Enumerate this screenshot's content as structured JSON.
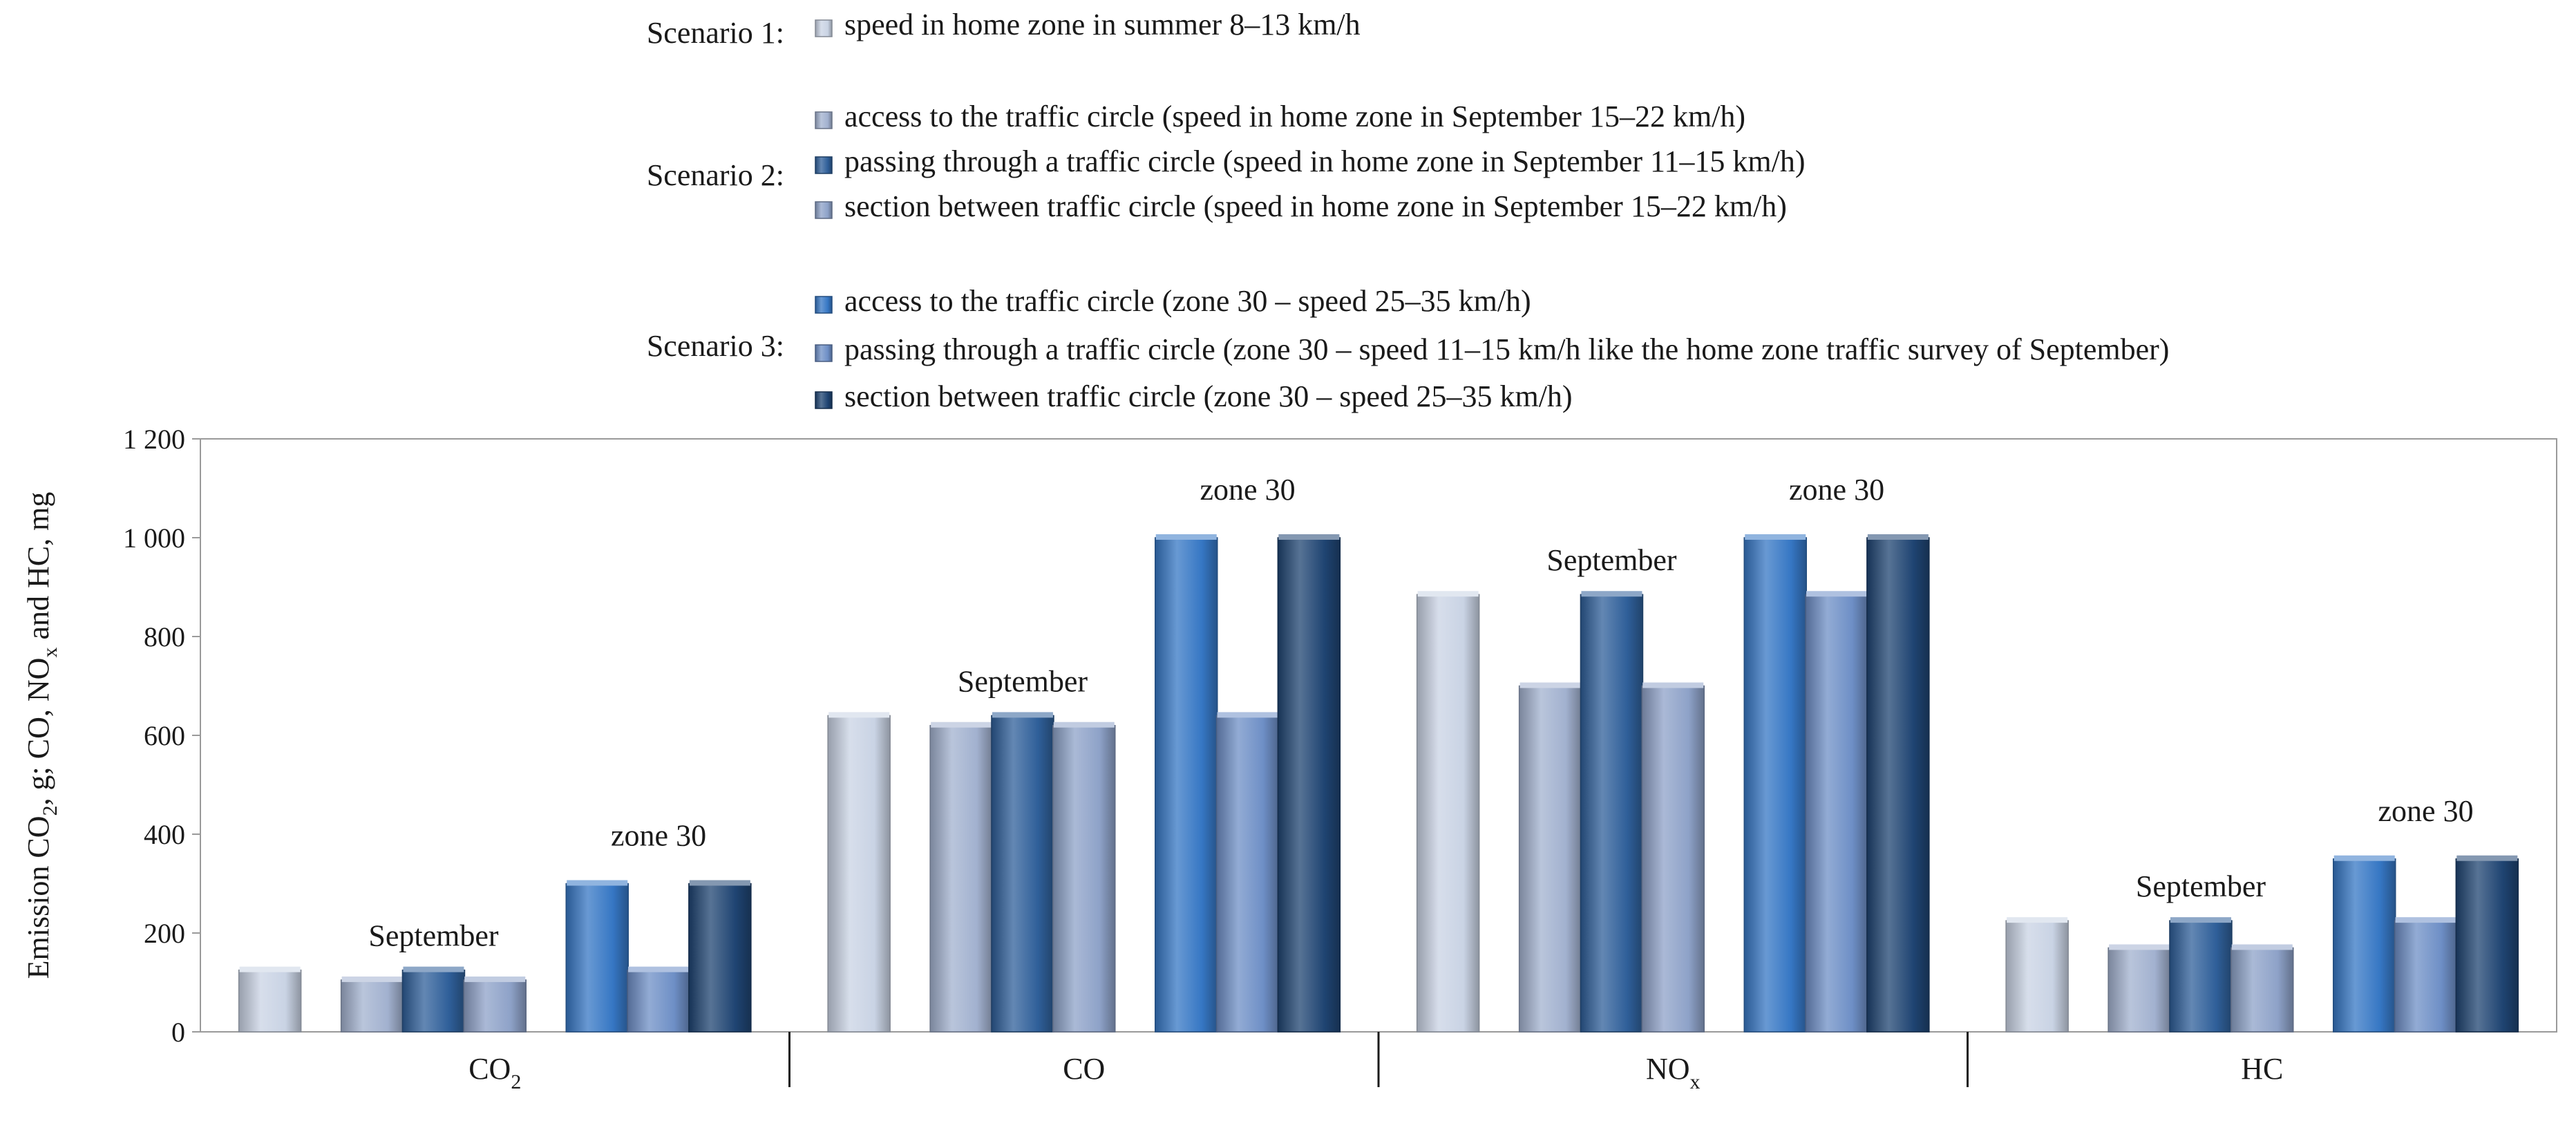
{
  "chart_data": {
    "type": "bar",
    "ylabel_parts": [
      "Emission CO",
      "2",
      ", g; CO, NO",
      "x",
      " and HC, mg"
    ],
    "ylim": [
      0,
      1200
    ],
    "yticks": [
      0,
      200,
      400,
      600,
      800,
      1000,
      1200
    ],
    "ytick_labels": [
      "0",
      "200",
      "400",
      "600",
      "800",
      "1 000",
      "1 200"
    ],
    "grid": false,
    "legend": {
      "position": "top",
      "groups": [
        {
          "label": "Scenario 1:",
          "entries": [
            {
              "key": "s1_summer",
              "text": "speed in home zone in summer 8–13 km/h"
            }
          ]
        },
        {
          "label": "Scenario 2:",
          "entries": [
            {
              "key": "s2_access",
              "text": "access to the traffic circle (speed in home zone in September 15–22 km/h)"
            },
            {
              "key": "s2_passing",
              "text": "passing through a traffic circle (speed in home zone in September 11–15 km/h)"
            },
            {
              "key": "s2_section",
              "text": "section between traffic circle (speed in home zone in September 15–22 km/h)"
            }
          ]
        },
        {
          "label": "Scenario 3:",
          "entries": [
            {
              "key": "s3_access",
              "text": "access to the traffic circle (zone 30 – speed 25–35 km/h)"
            },
            {
              "key": "s3_passing",
              "text": "passing through a traffic circle (zone 30 – speed 11–15 km/h like the home zone traffic survey of September)"
            },
            {
              "key": "s3_section",
              "text": "section between traffic circle (zone 30 – speed 25–35 km/h)"
            }
          ]
        }
      ]
    },
    "series": [
      {
        "key": "s1_summer",
        "name": "speed in home zone in summer 8–13 km/h",
        "color": "#c9d3e4"
      },
      {
        "key": "s2_access",
        "name": "access to the traffic circle (speed in home zone in September 15–22 km/h)",
        "color": "#a2b1cf"
      },
      {
        "key": "s2_passing",
        "name": "passing through a traffic circle (speed in home zone in September 11–15 km/h)",
        "color": "#2f5f99"
      },
      {
        "key": "s2_section",
        "name": "section between traffic circle (speed in home zone in September 15–22 km/h)",
        "color": "#8ea2c8"
      },
      {
        "key": "s3_access",
        "name": "access to the traffic circle (zone 30 – speed 25–35 km/h)",
        "color": "#3677c4"
      },
      {
        "key": "s3_passing",
        "name": "passing through a traffic circle (zone 30 – speed 11–15 km/h like the home zone traffic survey of September)",
        "color": "#6e8fc6"
      },
      {
        "key": "s3_section",
        "name": "section between traffic circle (zone 30 – speed 25–35 km/h)",
        "color": "#1f4472"
      }
    ],
    "categories": [
      {
        "label": "CO",
        "subscript": "2",
        "values": {
          "s1_summer": 125,
          "s2_access": 105,
          "s2_passing": 125,
          "s2_section": 105,
          "s3_access": 300,
          "s3_passing": 125,
          "s3_section": 300
        },
        "annotations": [
          "September",
          "zone 30"
        ]
      },
      {
        "label": "CO",
        "subscript": "",
        "values": {
          "s1_summer": 640,
          "s2_access": 620,
          "s2_passing": 640,
          "s2_section": 620,
          "s3_access": 1000,
          "s3_passing": 640,
          "s3_section": 1000
        },
        "annotations": [
          "September",
          "zone 30"
        ]
      },
      {
        "label": "NO",
        "subscript": "x",
        "values": {
          "s1_summer": 885,
          "s2_access": 700,
          "s2_passing": 885,
          "s2_section": 700,
          "s3_access": 1000,
          "s3_passing": 885,
          "s3_section": 1000
        },
        "annotations": [
          "September",
          "zone 30"
        ]
      },
      {
        "label": "HC",
        "subscript": "",
        "values": {
          "s1_summer": 225,
          "s2_access": 170,
          "s2_passing": 225,
          "s2_section": 170,
          "s3_access": 350,
          "s3_passing": 225,
          "s3_section": 350
        },
        "annotations": [
          "September",
          "zone 30"
        ]
      }
    ]
  }
}
